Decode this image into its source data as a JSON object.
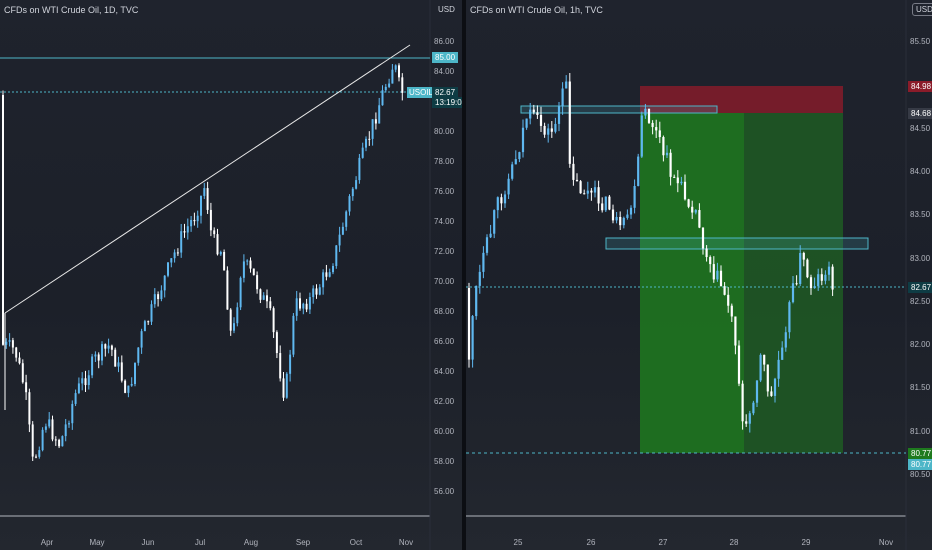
{
  "left_chart": {
    "title": "CFDs on WTI Crude Oil, 1D, TVC",
    "currency": "USD",
    "price_ticks": [
      "86.00",
      "84.00",
      "82.00",
      "80.00",
      "78.00",
      "76.00",
      "74.00",
      "72.00",
      "70.00",
      "68.00",
      "66.00",
      "64.00",
      "62.00",
      "60.00",
      "58.00",
      "56.00"
    ],
    "time_ticks": [
      "Apr",
      "May",
      "Jun",
      "Jul",
      "Aug",
      "Sep",
      "Oct",
      "Nov"
    ],
    "resistance_label": "85.00",
    "symbol_label": "USOIL",
    "price_label": "82.67",
    "countdown_label": "13:19:04"
  },
  "right_chart": {
    "title": "CFDs on WTI Crude Oil, 1h, TVC",
    "currency": "USD",
    "price_ticks": [
      "85.50",
      "85.00",
      "84.50",
      "84.00",
      "83.50",
      "83.00",
      "82.50",
      "82.00",
      "81.50",
      "81.00",
      "80.50"
    ],
    "time_ticks": [
      "25",
      "26",
      "27",
      "28",
      "29",
      "Nov"
    ],
    "stop_label": "84.98",
    "entry_label": "84.68",
    "price_label": "82.67",
    "target_label": "80.77",
    "low_label": "80.77"
  },
  "colors": {
    "bull": "#5fb8f0",
    "bear": "#ffffff",
    "accent": "#4db6c8",
    "loss_zone": "#8b1c2a",
    "profit_zone": "#1e7a1e"
  }
}
